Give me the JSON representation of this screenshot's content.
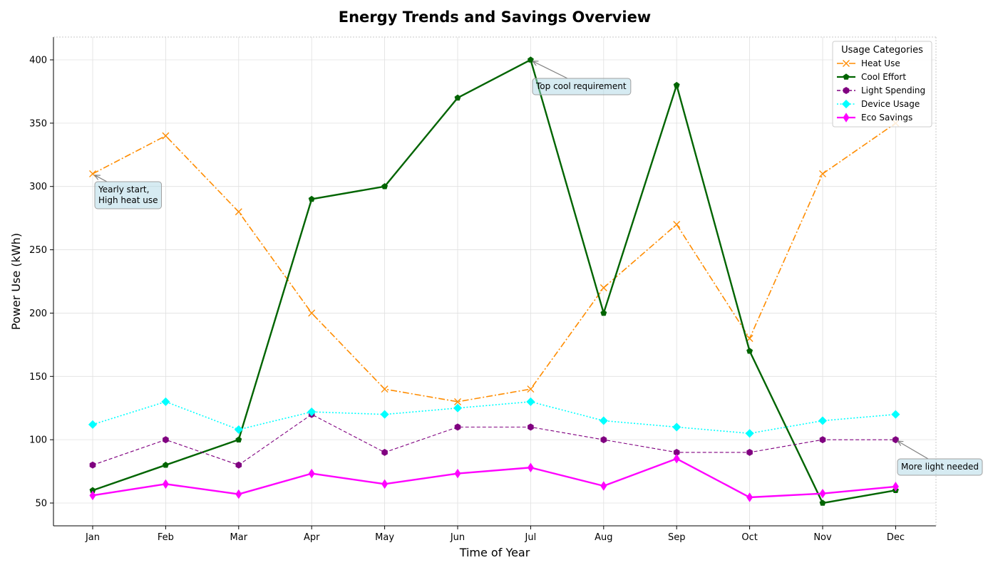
{
  "chart_data": {
    "type": "line",
    "title": "Energy Trends and Savings Overview",
    "xlabel": "Time of Year",
    "ylabel": "Power Use (kWh)",
    "categories": [
      "Jan",
      "Feb",
      "Mar",
      "Apr",
      "May",
      "Jun",
      "Jul",
      "Aug",
      "Sep",
      "Oct",
      "Nov",
      "Dec"
    ],
    "ylim": [
      32,
      418
    ],
    "yticks": [
      50,
      100,
      150,
      200,
      250,
      300,
      350,
      400
    ],
    "grid": true,
    "legend": {
      "title": "Usage Categories",
      "placement": "top-right"
    },
    "series": [
      {
        "name": "Heat Use",
        "values": [
          310,
          340,
          280,
          200,
          140,
          130,
          140,
          220,
          270,
          180,
          310,
          350
        ],
        "color": "#ff8c00",
        "linestyle": "dashdot",
        "marker": "x"
      },
      {
        "name": "Cool Effort",
        "values": [
          60,
          80,
          100,
          290,
          300,
          370,
          400,
          200,
          380,
          170,
          50,
          60
        ],
        "color": "#006400",
        "linestyle": "solid",
        "marker": "pentagon"
      },
      {
        "name": "Light Spending",
        "values": [
          80,
          100,
          80,
          120,
          90,
          110,
          110,
          100,
          90,
          90,
          100,
          100
        ],
        "color": "#800080",
        "linestyle": "dashed",
        "marker": "hexagon"
      },
      {
        "name": "Device Usage",
        "values": [
          112,
          130,
          108,
          122,
          120,
          125,
          130,
          115,
          110,
          105,
          115,
          120
        ],
        "color": "#00ffff",
        "linestyle": "dotted",
        "marker": "diamond"
      },
      {
        "name": "Eco Savings",
        "values": [
          56,
          65,
          57,
          73.3,
          65,
          73.3,
          78,
          63.5,
          85,
          54.5,
          57.5,
          63
        ],
        "color": "#ff00ff",
        "linestyle": "solid",
        "marker": "thin-diamond"
      }
    ],
    "annotations": [
      {
        "text": "Yearly start,\nHigh heat use",
        "target": {
          "x": "Jan",
          "y": 310
        }
      },
      {
        "text": "Top cool requirement",
        "target": {
          "x": "Jul",
          "y": 400
        }
      },
      {
        "text": "More light needed",
        "target": {
          "x": "Dec",
          "y": 100
        }
      }
    ]
  }
}
